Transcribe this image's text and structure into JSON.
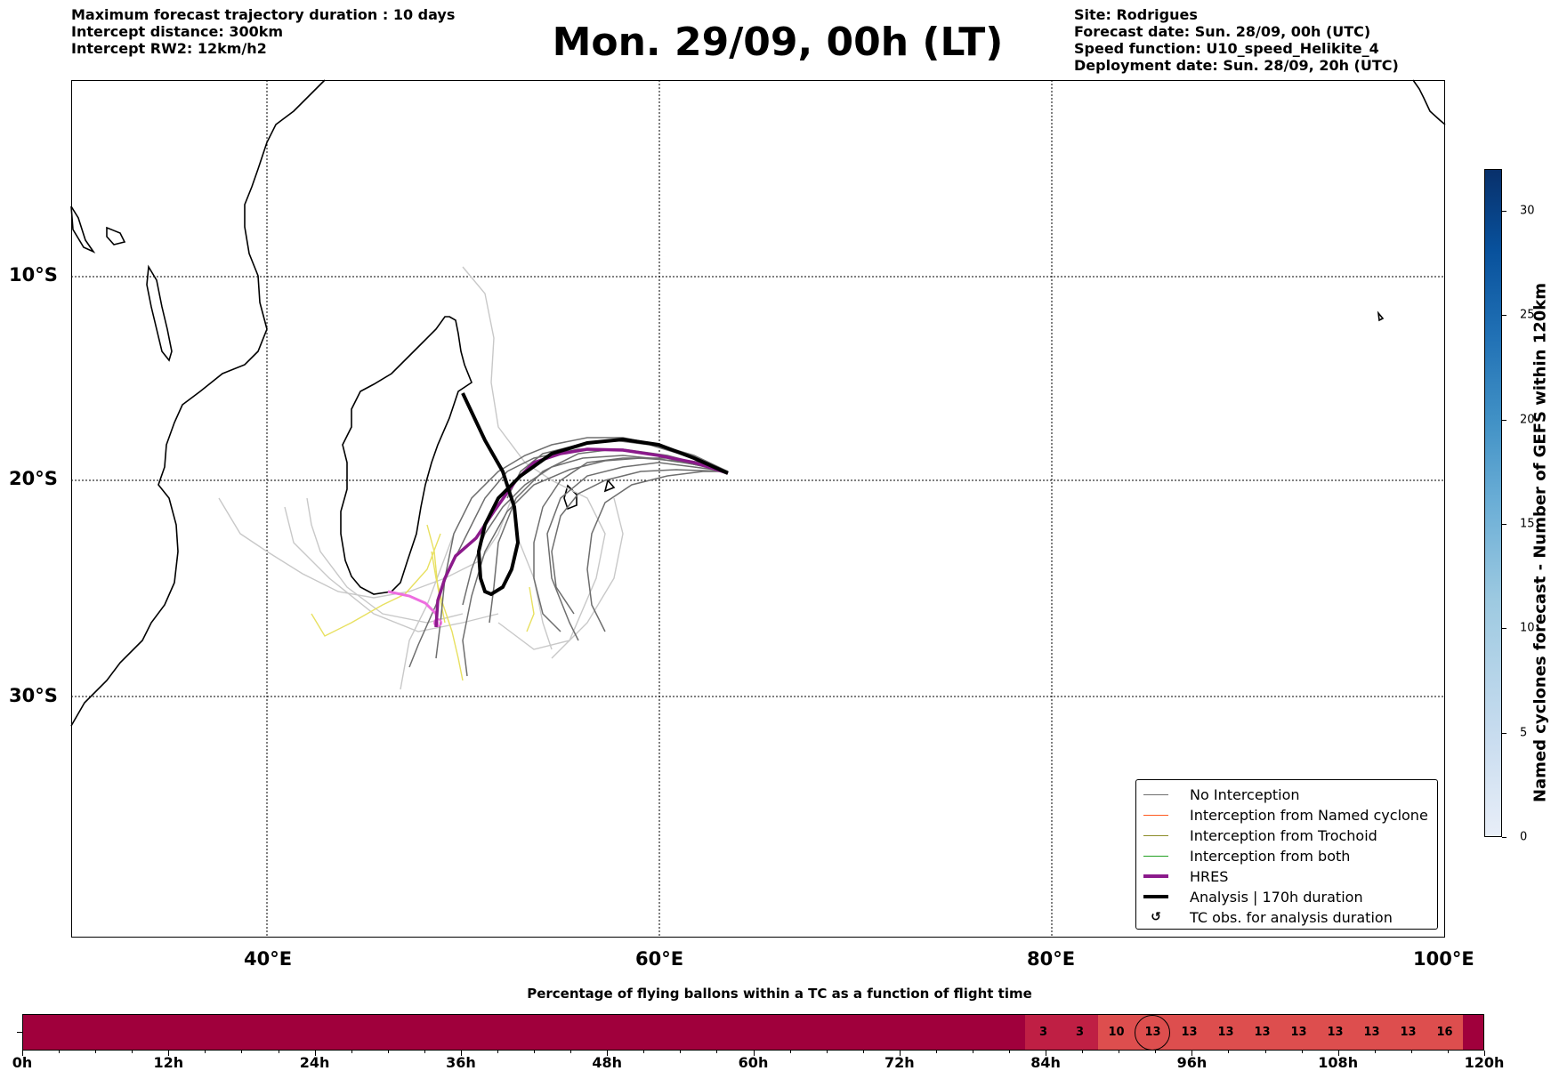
{
  "header_left": {
    "line1": "Maximum forecast trajectory duration : 10 days",
    "line2": "Intercept distance: 300km",
    "line3": "Intercept RW2: 12km/h2"
  },
  "title": "Mon. 29/09, 00h (LT)",
  "header_right": {
    "line1": "Site: Rodrigues",
    "line2": "Forecast date: Sun. 28/09, 00h (UTC)",
    "line3": "Speed function: U10_speed_Helikite_4",
    "line4": "Deployment date: Sun. 28/09, 20h (UTC)"
  },
  "map": {
    "lat_labels": [
      "10°S",
      "20°S",
      "30°S"
    ],
    "lon_labels": [
      "40°E",
      "60°E",
      "80°E",
      "100°E"
    ],
    "colors": {
      "no_interception": "#6e6e6e",
      "named_cyclone": "#ff5a1f",
      "trochoid": "#8c8c28",
      "both": "#22a022",
      "hres": "#8b1a8b",
      "analysis": "#000000",
      "pink": "#ee6ee0",
      "light_gray": "#c8c8c8",
      "yellow": "#e8e060"
    }
  },
  "legend": {
    "items": [
      {
        "label": "No Interception"
      },
      {
        "label": "Interception from Named cyclone"
      },
      {
        "label": "Interception from Trochoid"
      },
      {
        "label": "Interception from both"
      },
      {
        "label": "HRES"
      },
      {
        "label": "Analysis | 170h duration"
      },
      {
        "label": "TC obs. for analysis duration"
      }
    ]
  },
  "colorbar": {
    "title": "Named cyclones forecast - Number of GEFS within 120km",
    "ticks": [
      "0",
      "5",
      "10",
      "15",
      "20",
      "25",
      "30"
    ],
    "range": [
      0,
      32
    ]
  },
  "timeline": {
    "caption": "Percentage of flying ballons within a TC as a function of flight time",
    "ticks": [
      "0h",
      "12h",
      "24h",
      "36h",
      "48h",
      "60h",
      "72h",
      "84h",
      "96h",
      "108h",
      "120h"
    ],
    "cells": [
      "3",
      "3",
      "10",
      "13",
      "13",
      "13",
      "13",
      "13",
      "13",
      "13",
      "13",
      "16"
    ],
    "circled_index": 3,
    "colors": {
      "base": "#a0003c",
      "low": "#bf1f44",
      "high": "#dd4e4e"
    }
  }
}
